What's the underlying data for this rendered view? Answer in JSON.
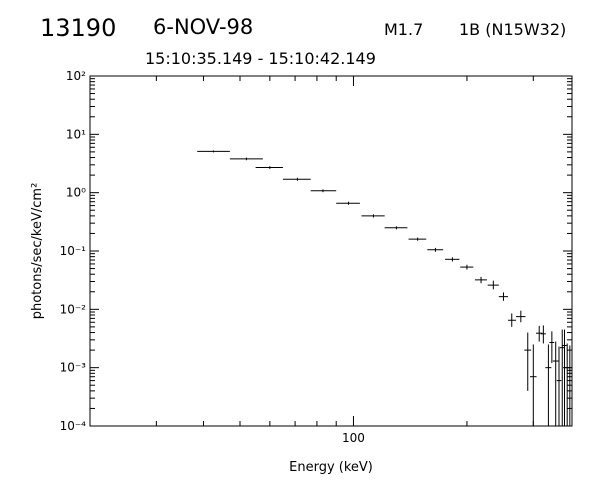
{
  "header": {
    "event_id": "13190",
    "date": "6-NOV-98",
    "goes_class": "M1.7",
    "optical_class": "1B (N15W32)",
    "time_range": "15:10:35.149 - 15:10:42.149"
  },
  "chart_data": {
    "type": "scatter",
    "title": "",
    "xlabel": "Energy (keV)",
    "ylabel": "photons/sec/keV/cm²",
    "xscale": "log",
    "yscale": "log",
    "xlim": [
      20,
      380
    ],
    "ylim": [
      0.0001,
      100
    ],
    "x_tick_labels": [
      "100"
    ],
    "y_tick_labels": [
      "10⁻⁴",
      "10⁻³",
      "10⁻²",
      "10⁻¹",
      "10⁰",
      "10¹",
      "10²"
    ],
    "grid": false,
    "series": [
      {
        "points": [
          {
            "x": 42.5,
            "xlo": 38.5,
            "xhi": 47.0,
            "y": 5.1,
            "ylo": 4.9,
            "yhi": 5.3
          },
          {
            "x": 52.0,
            "xlo": 47.0,
            "xhi": 57.5,
            "y": 3.8,
            "ylo": 3.6,
            "yhi": 4.0
          },
          {
            "x": 60.0,
            "xlo": 55.0,
            "xhi": 65.0,
            "y": 2.7,
            "ylo": 2.55,
            "yhi": 2.85
          },
          {
            "x": 71.0,
            "xlo": 65.0,
            "xhi": 77.0,
            "y": 1.7,
            "ylo": 1.6,
            "yhi": 1.8
          },
          {
            "x": 83.0,
            "xlo": 77.0,
            "xhi": 90.0,
            "y": 1.08,
            "ylo": 1.02,
            "yhi": 1.14
          },
          {
            "x": 97.0,
            "xlo": 90.0,
            "xhi": 104.0,
            "y": 0.66,
            "ylo": 0.62,
            "yhi": 0.7
          },
          {
            "x": 113.0,
            "xlo": 105.0,
            "xhi": 121.0,
            "y": 0.4,
            "ylo": 0.375,
            "yhi": 0.425
          },
          {
            "x": 130.0,
            "xlo": 121.0,
            "xhi": 139.0,
            "y": 0.25,
            "ylo": 0.235,
            "yhi": 0.265
          },
          {
            "x": 148.0,
            "xlo": 140.0,
            "xhi": 156.0,
            "y": 0.16,
            "ylo": 0.15,
            "yhi": 0.17
          },
          {
            "x": 165.0,
            "xlo": 157.0,
            "xhi": 173.0,
            "y": 0.105,
            "ylo": 0.097,
            "yhi": 0.113
          },
          {
            "x": 183.0,
            "xlo": 175.0,
            "xhi": 191.0,
            "y": 0.072,
            "ylo": 0.066,
            "yhi": 0.078
          },
          {
            "x": 200.0,
            "xlo": 192.0,
            "xhi": 208.0,
            "y": 0.053,
            "ylo": 0.048,
            "yhi": 0.058
          },
          {
            "x": 218.0,
            "xlo": 210.0,
            "xhi": 226.0,
            "y": 0.032,
            "ylo": 0.028,
            "yhi": 0.036
          },
          {
            "x": 235.0,
            "xlo": 227.0,
            "xhi": 243.0,
            "y": 0.026,
            "ylo": 0.022,
            "yhi": 0.031
          },
          {
            "x": 250.0,
            "xlo": 243.0,
            "xhi": 257.0,
            "y": 0.0165,
            "ylo": 0.014,
            "yhi": 0.0195
          },
          {
            "x": 263.0,
            "xlo": 257.0,
            "xhi": 270.0,
            "y": 0.0065,
            "ylo": 0.005,
            "yhi": 0.0085
          },
          {
            "x": 278.0,
            "xlo": 270.0,
            "xhi": 286.0,
            "y": 0.0075,
            "ylo": 0.006,
            "yhi": 0.0095
          },
          {
            "x": 290.0,
            "xlo": 284.0,
            "xhi": 296.0,
            "y": 0.002,
            "ylo": 0.0004,
            "yhi": 0.004
          },
          {
            "x": 300.0,
            "xlo": 294.0,
            "xhi": 306.0,
            "y": 0.0007,
            "ylo": 0.0001,
            "yhi": 0.0025
          },
          {
            "x": 311.0,
            "xlo": 305.0,
            "xhi": 317.0,
            "y": 0.0039,
            "ylo": 0.0028,
            "yhi": 0.0052
          },
          {
            "x": 319.0,
            "xlo": 314.0,
            "xhi": 324.0,
            "y": 0.0038,
            "ylo": 0.0026,
            "yhi": 0.0053
          },
          {
            "x": 329.0,
            "xlo": 323.0,
            "xhi": 335.0,
            "y": 0.001,
            "ylo": 0.0001,
            "yhi": 0.0025
          },
          {
            "x": 336.0,
            "xlo": 331.0,
            "xhi": 341.0,
            "y": 0.0027,
            "ylo": 0.0012,
            "yhi": 0.0042
          },
          {
            "x": 344.0,
            "xlo": 338.0,
            "xhi": 350.0,
            "y": 0.0013,
            "ylo": 0.0001,
            "yhi": 0.0028
          },
          {
            "x": 351.0,
            "xlo": 346.0,
            "xhi": 356.0,
            "y": 0.0006,
            "ylo": 0.0001,
            "yhi": 0.0023
          },
          {
            "x": 358.0,
            "xlo": 353.0,
            "xhi": 363.0,
            "y": 0.0022,
            "ylo": 0.0001,
            "yhi": 0.0045
          },
          {
            "x": 363.0,
            "xlo": 358.0,
            "xhi": 368.0,
            "y": 0.0024,
            "ylo": 0.0001,
            "yhi": 0.0045
          },
          {
            "x": 369.0,
            "xlo": 364.0,
            "xhi": 374.0,
            "y": 0.001,
            "ylo": 0.0001,
            "yhi": 0.0026
          },
          {
            "x": 375.0,
            "xlo": 371.0,
            "xhi": 379.0,
            "y": 0.001,
            "ylo": 0.0001,
            "yhi": 0.0024
          }
        ]
      }
    ]
  }
}
